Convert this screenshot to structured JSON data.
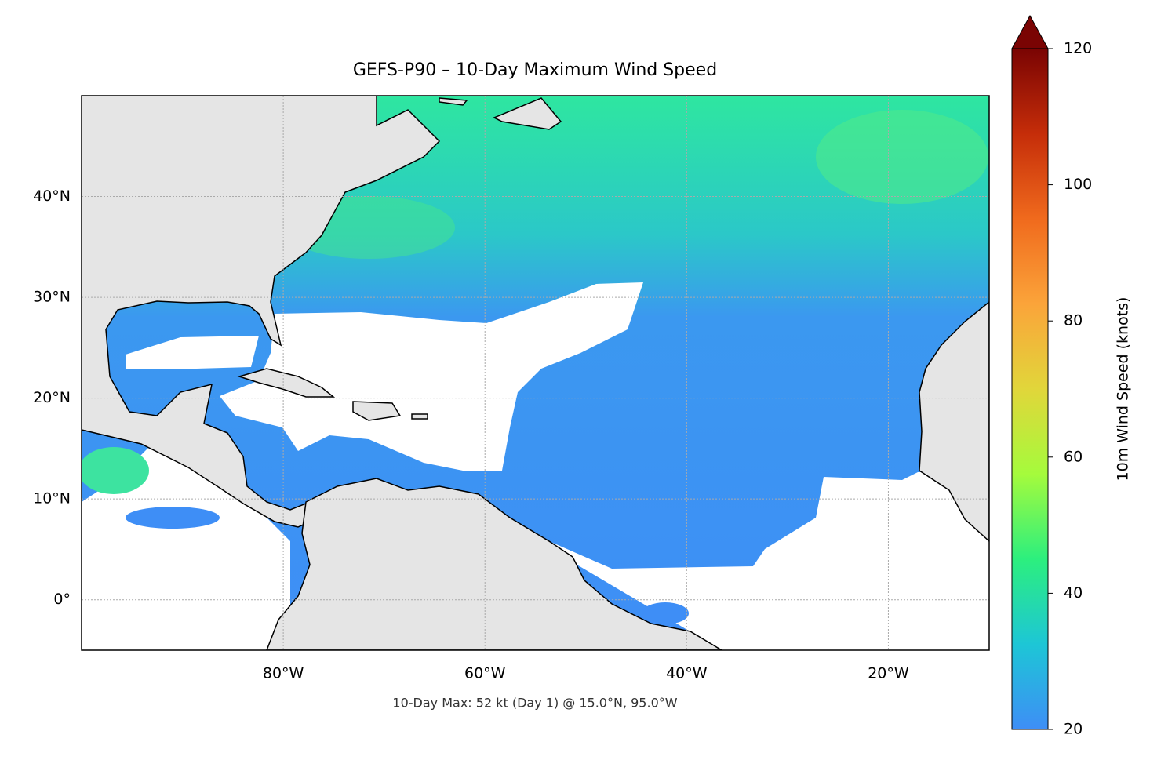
{
  "chart_data": {
    "type": "map",
    "title": "GEFS-P90 – 10-Day Maximum Wind Speed",
    "annotation": "10-Day Max: 52 kt (Day 1) @ 15.0°N, 95.0°W",
    "xlim": [
      -100,
      -10
    ],
    "ylim": [
      -5,
      50
    ],
    "xticks": [
      {
        "value": -80,
        "label": "80°W"
      },
      {
        "value": -60,
        "label": "60°W"
      },
      {
        "value": -40,
        "label": "40°W"
      },
      {
        "value": -20,
        "label": "20°W"
      }
    ],
    "yticks": [
      {
        "value": 0,
        "label": "0°"
      },
      {
        "value": 10,
        "label": "10°N"
      },
      {
        "value": 20,
        "label": "20°N"
      },
      {
        "value": 30,
        "label": "30°N"
      },
      {
        "value": 40,
        "label": "40°N"
      }
    ],
    "grid": true,
    "colorbar": {
      "label": "10m Wind Speed (knots)",
      "lim": [
        20,
        120
      ],
      "ticks": [
        20,
        40,
        60,
        80,
        100,
        120
      ],
      "colormap": [
        "#3e8ef6",
        "#1dc6d6",
        "#2cef7e",
        "#a5fb3c",
        "#e1d63a",
        "#fba43a",
        "#f06a1d",
        "#c52d09",
        "#7a0403"
      ]
    }
  }
}
